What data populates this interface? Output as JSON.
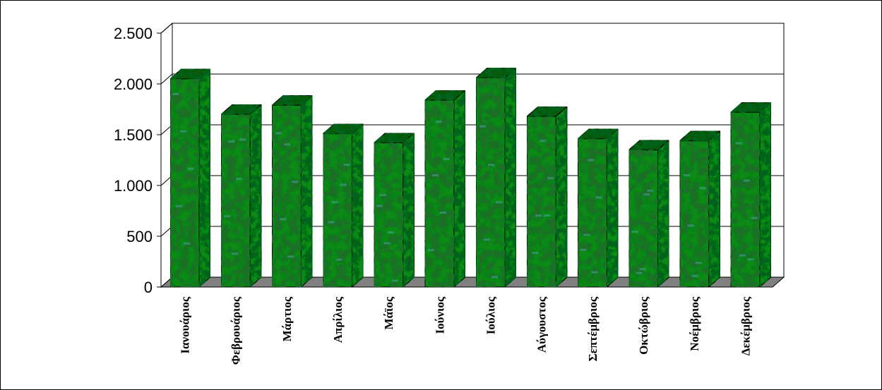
{
  "chart_data": {
    "type": "bar",
    "style": "3d-column-textured",
    "title": "",
    "xlabel": "",
    "ylabel": "",
    "categories": [
      "Ιανουάριος",
      "Φεβρουάριος",
      "Μάρτιος",
      "Απρίλιος",
      "Μάϊος",
      "Ιούνιος",
      "Ιούλιος",
      "Αύγουστος",
      "Σεπτέμβριος",
      "Οκτώβριος",
      "Νοέμβριος",
      "Δεκέμβριος"
    ],
    "values": [
      2050,
      1700,
      1790,
      1510,
      1420,
      1840,
      2060,
      1680,
      1460,
      1350,
      1440,
      1720
    ],
    "ylim": [
      0,
      2500
    ],
    "yticks": [
      0,
      500,
      1000,
      1500,
      2000,
      2500
    ],
    "ytick_labels": [
      "0",
      "500",
      "1.000",
      "1.500",
      "2.000",
      "2.500"
    ],
    "grid": true,
    "legend": "none",
    "colors": {
      "bar_base": "#0f8a12",
      "bar_dark": "#032a05",
      "bar_speck": "#4aa0a0",
      "floor": "#808080",
      "grid": "#000000"
    }
  }
}
